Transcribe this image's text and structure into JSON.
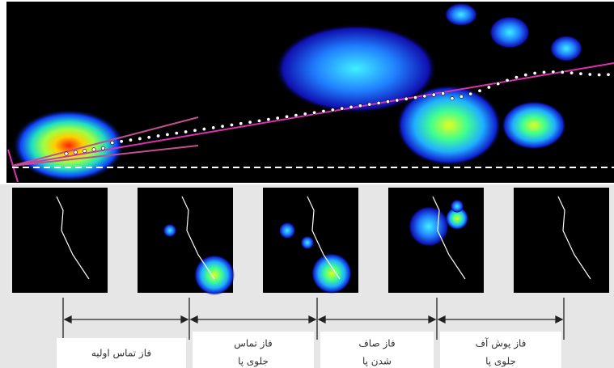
{
  "phases": [
    {
      "lines": [
        "فاز تماس اولیه"
      ]
    },
    {
      "lines": [
        "فاز تماس",
        "جلوی پا"
      ]
    },
    {
      "lines": [
        "فاز صاف",
        "شدن پا"
      ]
    },
    {
      "lines": [
        "فاز پوش آف",
        "جلوی پا"
      ]
    }
  ]
}
